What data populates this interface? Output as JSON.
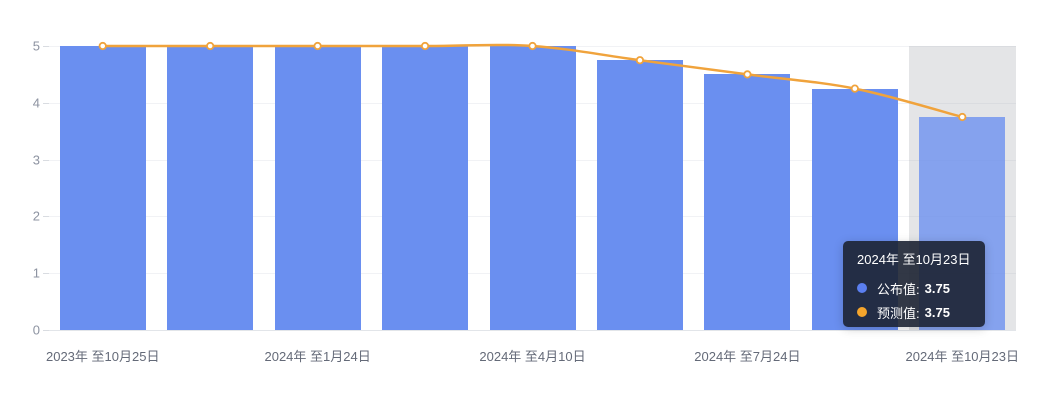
{
  "accent_colors": {
    "bar_blue": "#6a8ff0",
    "line_orange": "#f0a33c",
    "tooltip_bg": "#1c2232",
    "highlight_band": "#e3e4e7"
  },
  "chart_data": {
    "type": "bar",
    "n_categories": 9,
    "series": [
      {
        "name": "公布值",
        "type": "bar",
        "color": "#6a8ff0",
        "values": [
          5,
          5,
          5,
          5,
          5,
          4.75,
          4.5,
          4.25,
          3.75
        ]
      },
      {
        "name": "预测值",
        "type": "line",
        "color": "#f0a33c",
        "values": [
          5,
          5,
          5,
          5,
          5,
          4.75,
          4.5,
          4.25,
          3.75
        ]
      }
    ],
    "x_tick_labels": [
      "2023年 至10月25日",
      "2024年 至1月24日",
      "2024年 至4月10日",
      "2024年 至7月24日",
      "2024年 至10月23日"
    ],
    "x_tick_indices": [
      0,
      2,
      4,
      6,
      8
    ],
    "y_ticks": [
      0,
      1,
      2,
      3,
      4,
      5
    ],
    "ylim": [
      0,
      5
    ],
    "grid": true,
    "legend_position": "none",
    "highlight_index": 8,
    "highlighted_bar_opacity": 0.78
  },
  "tooltip": {
    "title": "2024年 至10月23日",
    "rows": [
      {
        "dot_color": "#5b7ff0",
        "label": "公布值:",
        "value": "3.75"
      },
      {
        "dot_color": "#f5a52c",
        "label": "预测值:",
        "value": "3.75"
      }
    ]
  }
}
